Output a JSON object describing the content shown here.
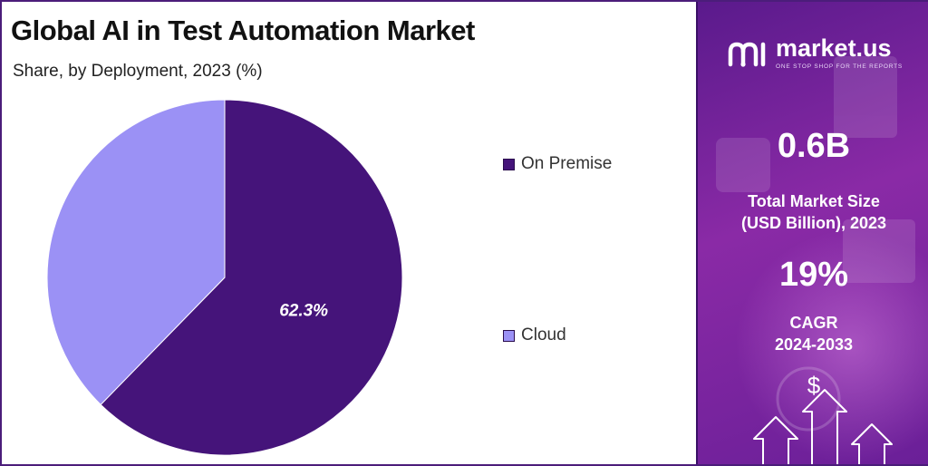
{
  "header": {
    "title": "Global AI in Test Automation Market",
    "subtitle": "Share, by Deployment, 2023 (%)"
  },
  "chart_data": {
    "type": "pie",
    "title": "Global AI in Test Automation Market",
    "subtitle": "Share, by Deployment, 2023 (%)",
    "slices": [
      {
        "name": "On Premise",
        "value": 62.3,
        "label": "62.3%",
        "color": "#45147a"
      },
      {
        "name": "Cloud",
        "value": 37.7,
        "color": "#9b91f5"
      }
    ]
  },
  "legend": {
    "items": [
      {
        "label": "On Premise",
        "color": "#45147a"
      },
      {
        "label": "Cloud",
        "color": "#9b91f5"
      }
    ]
  },
  "sidebar": {
    "brand": "market.us",
    "tagline": "ONE STOP SHOP FOR THE REPORTS",
    "market_size_value": "0.6B",
    "market_size_label_line1": "Total Market Size",
    "market_size_label_line2": "(USD Billion), 2023",
    "cagr_value": "19%",
    "cagr_label_line1": "CAGR",
    "cagr_label_line2": "2024-2033",
    "currency_symbol": "$"
  },
  "colors": {
    "on_premise": "#45147a",
    "cloud": "#9b91f5",
    "panel_purple": "#7a24a0"
  }
}
